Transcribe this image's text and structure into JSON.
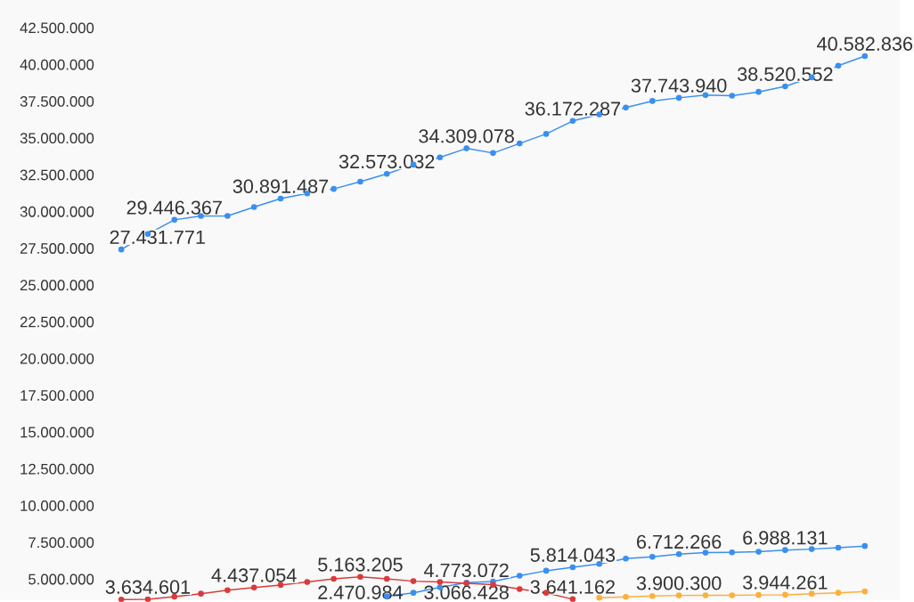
{
  "chart_data": {
    "type": "line",
    "categories": [
      null,
      null,
      null,
      null,
      null,
      null,
      null,
      null,
      null,
      null,
      null,
      null,
      null,
      null,
      null,
      null,
      null,
      null,
      null,
      null,
      null,
      null,
      null,
      null,
      null,
      null,
      null,
      null,
      null
    ],
    "series": [
      {
        "color": "#3a8ff0",
        "values": [
          27431771,
          28480000,
          29446367,
          29710000,
          29710000,
          30320000,
          30891487,
          31240000,
          31550000,
          32040000,
          32573032,
          33200000,
          33690000,
          34309078,
          33990000,
          34640000,
          35290000,
          36172287,
          36620000,
          37080000,
          37530000,
          37743940,
          37930000,
          37890000,
          38150000,
          38520552,
          39140000,
          39930000,
          40582836
        ],
        "value_labels": [
          "27.431.771",
          null,
          "29.446.367",
          null,
          null,
          null,
          "30.891.487",
          null,
          null,
          null,
          "32.573.032",
          null,
          null,
          "34.309.078",
          null,
          null,
          null,
          "36.172.287",
          null,
          null,
          null,
          "37.743.940",
          null,
          null,
          null,
          "38.520.552",
          null,
          null,
          "40.582.836"
        ]
      },
      {
        "color": "#3a8ff0",
        "values": [
          null,
          null,
          null,
          null,
          null,
          null,
          null,
          null,
          null,
          null,
          3850000,
          4080000,
          4450000,
          4773072,
          4850000,
          5240000,
          5580000,
          5814043,
          6040000,
          6410000,
          6530000,
          6712266,
          6810000,
          6830000,
          6870000,
          6988131,
          7050000,
          7150000,
          7260000
        ],
        "value_labels": [
          null,
          null,
          null,
          null,
          null,
          null,
          null,
          null,
          null,
          null,
          null,
          null,
          null,
          "4.773.072",
          null,
          null,
          null,
          "5.814.043",
          null,
          null,
          null,
          "6.712.266",
          null,
          null,
          null,
          "6.988.131",
          null,
          null,
          null
        ]
      },
      {
        "color": "#d93b3b",
        "values": [
          3620000,
          3634601,
          3820000,
          4020000,
          4260000,
          4437054,
          4610000,
          4810000,
          5030000,
          5163205,
          5030000,
          4870000,
          4810000,
          4730000,
          4630000,
          4330000,
          4080000,
          3641162,
          null,
          null,
          null,
          null,
          null,
          null,
          null,
          null,
          null,
          null,
          null
        ],
        "value_labels": [
          null,
          "3.634.601",
          null,
          null,
          null,
          "4.437.054",
          null,
          null,
          null,
          "5.163.205",
          null,
          null,
          null,
          null,
          null,
          null,
          null,
          "3.641.162",
          null,
          null,
          null,
          null,
          null,
          null,
          null,
          null,
          null,
          null,
          null
        ]
      },
      {
        "color": "#fbb03b",
        "values": [
          null,
          null,
          null,
          null,
          null,
          null,
          null,
          null,
          null,
          null,
          null,
          null,
          null,
          null,
          null,
          null,
          null,
          null,
          3740000,
          3800000,
          3860000,
          3900300,
          3910000,
          3910000,
          3930000,
          3944261,
          4020000,
          4080000,
          4170000
        ],
        "value_labels": [
          null,
          null,
          null,
          null,
          null,
          null,
          null,
          null,
          null,
          null,
          null,
          null,
          null,
          null,
          null,
          null,
          null,
          null,
          null,
          null,
          null,
          "3.900.300",
          null,
          null,
          null,
          "3.944.261",
          null,
          null,
          null
        ]
      }
    ],
    "ylim": [
      3600000,
      44400000
    ],
    "yticks": [
      {
        "value": 5000000,
        "label": "5.000.000"
      },
      {
        "value": 7500000,
        "label": "7.500.000"
      },
      {
        "value": 10000000,
        "label": "10.000.000"
      },
      {
        "value": 12500000,
        "label": "12.500.000"
      },
      {
        "value": 15000000,
        "label": "15.000.000"
      },
      {
        "value": 17500000,
        "label": "17.500.000"
      },
      {
        "value": 20000000,
        "label": "20.000.000"
      },
      {
        "value": 22500000,
        "label": "22.500.000"
      },
      {
        "value": 25000000,
        "label": "25.000.000"
      },
      {
        "value": 27500000,
        "label": "27.500.000"
      },
      {
        "value": 30000000,
        "label": "30.000.000"
      },
      {
        "value": 32500000,
        "label": "32.500.000"
      },
      {
        "value": 35000000,
        "label": "35.000.000"
      },
      {
        "value": 37500000,
        "label": "37.500.000"
      },
      {
        "value": 40000000,
        "label": "40.000.000"
      },
      {
        "value": 42500000,
        "label": "42.500.000"
      }
    ],
    "tick_labels": "y",
    "marker": "circle",
    "annotations": [
      "2.470.984",
      "3.066.428"
    ]
  }
}
